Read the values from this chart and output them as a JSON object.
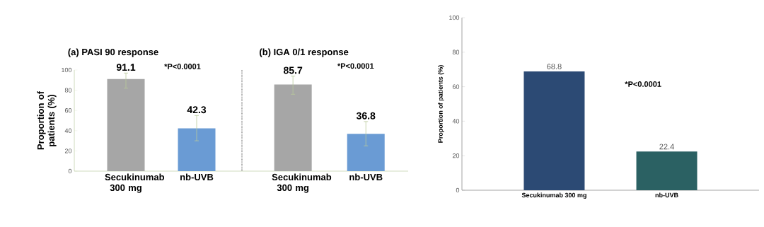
{
  "chart_data": [
    {
      "type": "bar",
      "title": "(a) PASI 90 response",
      "ylabel": "Proportion of patients (%)",
      "categories": [
        "Secukinumab 300 mg",
        "nb-UVB"
      ],
      "values": [
        91.1,
        42.3
      ],
      "colors": [
        "#a6a6a6",
        "#6a9bd4"
      ],
      "errors": [
        [
          82,
          97
        ],
        [
          30,
          55
        ]
      ],
      "ylim": [
        0,
        100
      ],
      "yticks": [
        0,
        20,
        40,
        60,
        80,
        100
      ],
      "data_labels": true,
      "annotations": [
        "*P<0.0001"
      ]
    },
    {
      "type": "bar",
      "title": "(b) IGA 0/1 response",
      "categories": [
        "Secukinumab 300 mg",
        "nb-UVB"
      ],
      "values": [
        85.7,
        36.8
      ],
      "colors": [
        "#a6a6a6",
        "#6a9bd4"
      ],
      "errors": [
        [
          76,
          94
        ],
        [
          25,
          49
        ]
      ],
      "ylim": [
        0,
        100
      ],
      "tick_labels": "x",
      "data_labels": true,
      "annotations": [
        "*P<0.0001"
      ]
    },
    {
      "type": "bar",
      "ylabel": "Proportion of patients (%)",
      "categories": [
        "Secukinumab 300 mg",
        "nb-UVB"
      ],
      "values": [
        68.8,
        22.4
      ],
      "colors": [
        "#2c4a74",
        "#2b6163"
      ],
      "ylim": [
        0,
        100
      ],
      "yticks": [
        0,
        20,
        40,
        60,
        80,
        100
      ],
      "data_labels": true,
      "annotations": [
        "*P<0.0001"
      ]
    }
  ]
}
